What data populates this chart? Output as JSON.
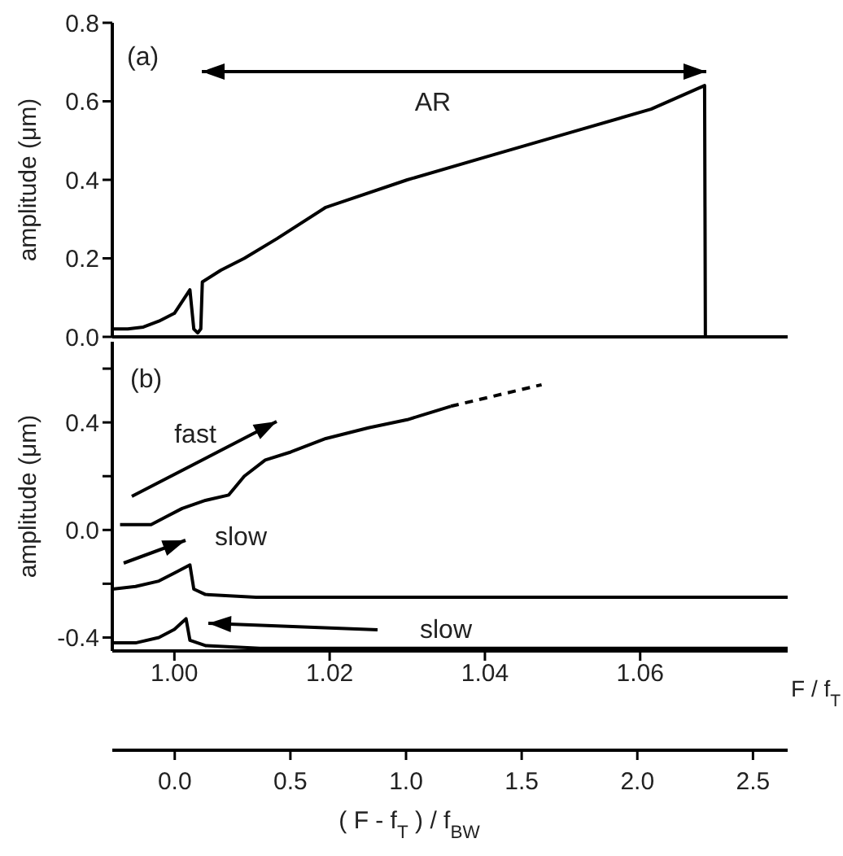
{
  "chart_data": [
    {
      "type": "line",
      "ylabel": "amplitude (μm)",
      "xlim": [
        0.992,
        1.079
      ],
      "xticks": [
        1.0,
        1.02,
        1.04,
        1.06
      ],
      "ylim": [
        0,
        0.8
      ],
      "yticks": [
        {
          "value": 0,
          "label": "0.0"
        },
        0.2,
        0.4,
        0.6,
        0.8
      ],
      "tick_labels": "y",
      "marker": "none",
      "annotations": [
        "(a)",
        "AR"
      ],
      "series": [
        {
          "color": "#000000",
          "x": [
            0.992,
            0.994,
            0.996,
            0.998,
            1.0,
            1.001,
            1.002,
            1.0025,
            1.003,
            1.0034,
            1.0036,
            1.006,
            1.009,
            1.0132,
            1.0195,
            1.03,
            1.0404,
            1.0509,
            1.0614,
            1.0683,
            1.0684,
            1.079
          ],
          "values": [
            0.02,
            0.02,
            0.025,
            0.04,
            0.06,
            0.09,
            0.12,
            0.02,
            0.01,
            0.02,
            0.14,
            0.17,
            0.2,
            0.25,
            0.33,
            0.4,
            0.46,
            0.52,
            0.58,
            0.64,
            0.0,
            0.0
          ]
        }
      ]
    },
    {
      "type": "line",
      "ylabel": "amplitude (μm)",
      "xlabel": "F / f$_{T}$",
      "x2label": "( F - f$_{T}$ ) / f$_{BW}$",
      "xlim": [
        0.992,
        1.079
      ],
      "xticks": [
        {
          "value": 1,
          "label": "1.00"
        },
        1.02,
        1.04,
        1.06
      ],
      "x2lim": [
        -0.27,
        2.65
      ],
      "x2ticks": [
        {
          "value": 0,
          "label": "0.0"
        },
        0.5,
        {
          "value": 1,
          "label": "1.0"
        },
        1.5,
        {
          "value": 2,
          "label": "2.0"
        },
        2.5
      ],
      "ylim": [
        -0.45,
        0.7
      ],
      "yticks": [
        -0.4,
        {
          "value": -0.2,
          "label": null
        },
        {
          "value": 0,
          "label": "0.0"
        },
        {
          "value": 0.2,
          "label": null
        },
        0.4,
        {
          "value": 0.6,
          "label": null
        }
      ],
      "marker": "none",
      "annotations": [
        "(b)",
        "fast",
        "slow",
        "slow"
      ],
      "series": [
        {
          "color": "#000000",
          "line_style": "solid",
          "x": [
            0.993,
            0.997,
            0.999,
            1.001,
            1.004,
            1.007,
            1.009,
            1.0117,
            1.015,
            1.0195,
            1.025,
            1.03,
            1.0356
          ],
          "values": [
            0.02,
            0.02,
            0.05,
            0.08,
            0.11,
            0.13,
            0.2,
            0.26,
            0.29,
            0.34,
            0.38,
            0.41,
            0.46
          ]
        },
        {
          "color": "#000000",
          "line_style": "dashed",
          "x": [
            1.0356,
            1.0473
          ],
          "values": [
            0.46,
            0.54
          ]
        },
        {
          "color": "#000000",
          "line_style": "solid",
          "x": [
            0.992,
            0.995,
            0.998,
            1.0,
            1.002,
            1.0025,
            1.004,
            1.0105,
            1.079
          ],
          "values": [
            -0.22,
            -0.21,
            -0.19,
            -0.16,
            -0.13,
            -0.22,
            -0.24,
            -0.25,
            -0.25
          ]
        },
        {
          "color": "#000000",
          "line_style": "solid",
          "x": [
            0.992,
            0.995,
            0.998,
            1.0,
            1.0015,
            1.002,
            1.004,
            1.011,
            1.079
          ],
          "values": [
            -0.42,
            -0.42,
            -0.4,
            -0.37,
            -0.33,
            -0.41,
            -0.43,
            -0.44,
            -0.44
          ]
        }
      ]
    }
  ]
}
